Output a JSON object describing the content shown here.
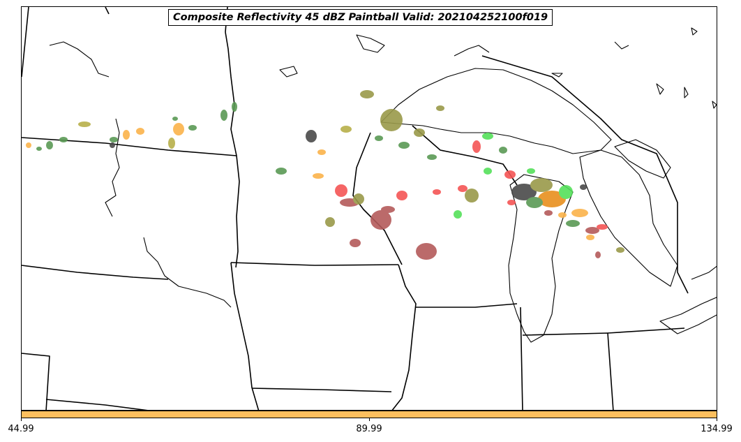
{
  "title": "Composite Reflectivity 45 dBZ Paintball Valid: 202104252100f019",
  "colorbar": {
    "color": "#fdbf5e",
    "ticks": [
      "44.99",
      "89.99",
      "134.99"
    ]
  },
  "colors": {
    "paint_orange": "#fbb34b",
    "paint_yellow": "#b8b04a",
    "paint_green": "#5a9a55",
    "paint_olive": "#9a9a4a",
    "paint_lightgreen": "#55e05a",
    "paint_red": "#f55555",
    "paint_brown": "#b45a5a",
    "paint_darkgray": "#4a4a4a",
    "paint_darkorange": "#e8901e"
  }
}
